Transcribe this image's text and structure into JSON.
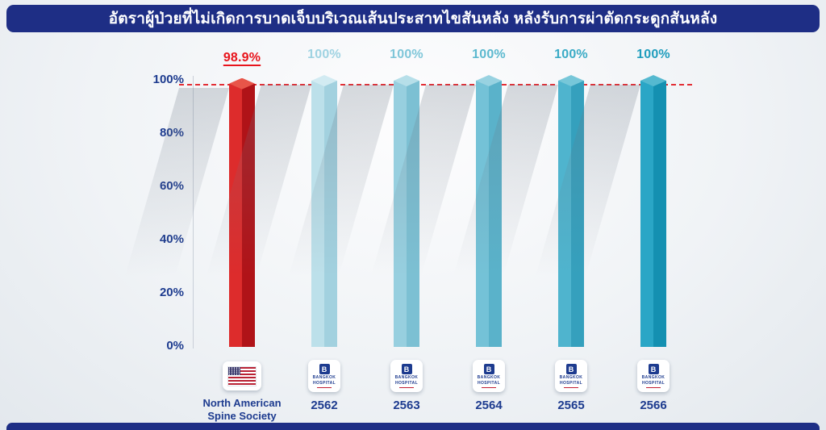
{
  "header": {
    "title": "อัตราผู้ป่วยที่ไม่เกิดการบาดเจ็บบริเวณเส้นประสาทไขสันหลัง หลังรับการผ่าตัดกระดูกสันหลัง",
    "bg_color": "#1e2e85",
    "text_color": "#ffffff"
  },
  "footer": {
    "bg_color": "#1e2e85"
  },
  "axis": {
    "label_color": "#1d3b8f",
    "ticks": [
      {
        "value": 100,
        "label": "100%"
      },
      {
        "value": 80,
        "label": "80%"
      },
      {
        "value": 60,
        "label": "60%"
      },
      {
        "value": 40,
        "label": "40%"
      },
      {
        "value": 20,
        "label": "20%"
      },
      {
        "value": 0,
        "label": "0%"
      }
    ]
  },
  "benchmark_line": {
    "value": 98.9,
    "color": "#e3242b",
    "style": "dashed"
  },
  "chart_data": {
    "type": "bar",
    "title": "อัตราผู้ป่วยที่ไม่เกิดการบาดเจ็บบริเวณเส้นประสาทไขสันหลัง หลังรับการผ่าตัดกระดูกสันหลัง",
    "categories": [
      "North American Spine Society",
      "2562",
      "2563",
      "2564",
      "2565",
      "2566"
    ],
    "values": [
      98.9,
      100,
      100,
      100,
      100,
      100
    ],
    "value_labels": [
      "98.9%",
      "100%",
      "100%",
      "100%",
      "100%",
      "100%"
    ],
    "xlabel": "",
    "ylabel": "",
    "ylim": [
      0,
      100
    ],
    "yticks": [
      "0%",
      "20%",
      "40%",
      "60%",
      "80%",
      "100%"
    ],
    "grid": false,
    "legend": false,
    "benchmark": 98.9,
    "bars": [
      {
        "category": "North American Spine Society",
        "value": 98.9,
        "label": "98.9%",
        "label_color": "#e8141c",
        "underline": true,
        "face_left": "#dd2c2c",
        "face_right": "#b01318",
        "cap": "#e85549",
        "icon": "us-flag"
      },
      {
        "category": "2562",
        "value": 100,
        "label": "100%",
        "label_color": "#9fd3e2",
        "underline": false,
        "face_left": "#bce0ea",
        "face_right": "#a2d1df",
        "cap": "#d2ebf2",
        "icon": "bangkok-hospital"
      },
      {
        "category": "2563",
        "value": 100,
        "label": "100%",
        "label_color": "#7fc6d9",
        "underline": false,
        "face_left": "#97cfdf",
        "face_right": "#7cc0d3",
        "cap": "#b6dfe9",
        "icon": "bangkok-hospital"
      },
      {
        "category": "2564",
        "value": 100,
        "label": "100%",
        "label_color": "#5cb9cf",
        "underline": false,
        "face_left": "#74c2d7",
        "face_right": "#5ab2ca",
        "cap": "#98d2e1",
        "icon": "bangkok-hospital"
      },
      {
        "category": "2565",
        "value": 100,
        "label": "100%",
        "label_color": "#3aabc6",
        "underline": false,
        "face_left": "#4fb4ce",
        "face_right": "#35a0bd",
        "cap": "#77c7d9",
        "icon": "bangkok-hospital"
      },
      {
        "category": "2566",
        "value": 100,
        "label": "100%",
        "label_color": "#1f9dbd",
        "underline": false,
        "face_left": "#2aa6c6",
        "face_right": "#1490b1",
        "cap": "#55b9d0",
        "icon": "bangkok-hospital"
      }
    ]
  },
  "icons": {
    "bangkok_hospital": {
      "monogram": "B",
      "line1": "BANGKOK",
      "line2": "HOSPITAL"
    },
    "us_flag": "us-flag-icon"
  }
}
